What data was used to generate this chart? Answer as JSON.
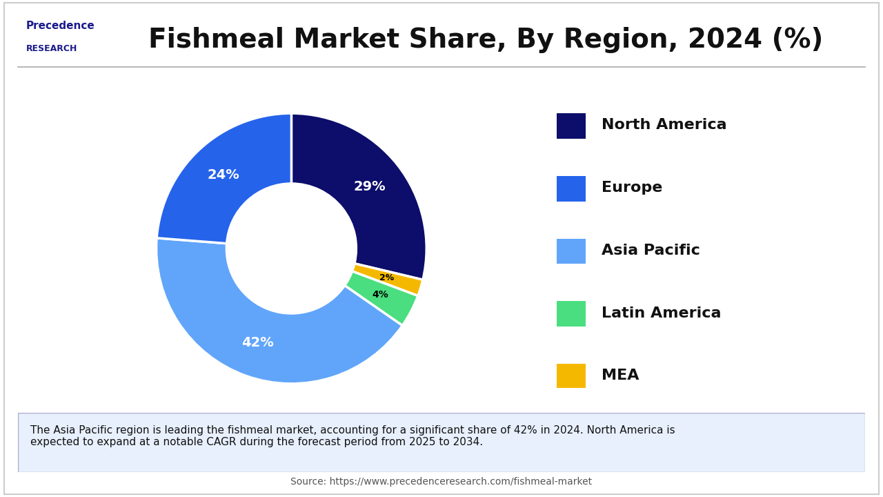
{
  "title": "Fishmeal Market Share, By Region, 2024 (%)",
  "title_fontsize": 28,
  "slices": [
    29,
    24,
    42,
    4,
    2
  ],
  "labels": [
    "North America",
    "Europe",
    "Asia Pacific",
    "Latin America",
    "MEA"
  ],
  "colors": [
    "#0d0d6b",
    "#2563eb",
    "#60a5fa",
    "#4ade80",
    "#f5b800"
  ],
  "legend_labels": [
    "North America",
    "Europe",
    "Asia Pacific",
    "Latin America",
    "MEA"
  ],
  "annotation_text": "The Asia Pacific region is leading the fishmeal market, accounting for a significant share of 42% in 2024. North America is\nexpected to expand at a notable CAGR during the forecast period from 2025 to 2034.",
  "source_text": "Source: https://www.precedenceresearch.com/fishmeal-market",
  "bg_color": "#ffffff",
  "annotation_bg": "#e8f0fe",
  "border_color": "#cccccc"
}
